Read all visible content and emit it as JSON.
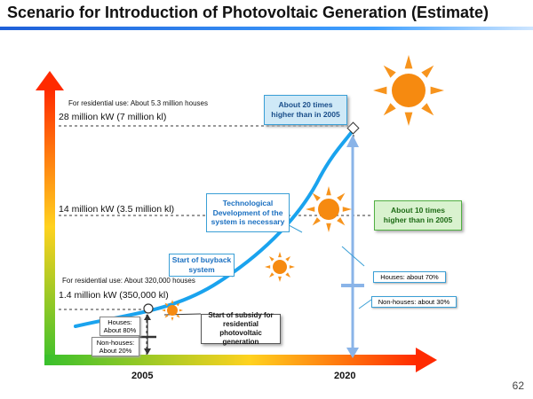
{
  "title": "Scenario for Introduction of Photovoltaic Generation (Estimate)",
  "page_number": "62",
  "x_axis": {
    "ticks": [
      "2005",
      "2020"
    ]
  },
  "levels": [
    {
      "note": "For residential use: About 5.3 million houses",
      "value": "28 million kW (7 million kl)"
    },
    {
      "note": "",
      "value": "14 million kW (3.5 million kl)"
    },
    {
      "note": "For residential use: About  320,000 houses",
      "value": "1.4 million  kW (350,000 kl)"
    }
  ],
  "callouts": {
    "times20": {
      "line1": "About 20 times",
      "line2": "higher than in 2005",
      "fill": "#cfe9f7",
      "border": "#3a9fd6",
      "color": "#1a4e8a"
    },
    "times10": {
      "line1": "About 10 times",
      "line2": "higher than in 2005",
      "fill": "#d9f2cf",
      "border": "#52b043",
      "color": "#1e6b16"
    },
    "tech": {
      "line1": "Technological",
      "line2": "Development  of the",
      "line3": "system is necessary",
      "color": "#1a6fc0"
    },
    "buyback": {
      "line1": "Start of buyback",
      "line2": "system",
      "color": "#1a6fc0"
    },
    "subsidy": {
      "line1": "Start of subsidy for",
      "line2": "residential  photovoltaic",
      "line3": "generation"
    }
  },
  "breakdown_2005": {
    "houses": {
      "line1": "Houses:",
      "line2": "About 80%"
    },
    "non_houses": {
      "line1": "Non-houses:",
      "line2": "About 20%"
    }
  },
  "breakdown_2020": {
    "houses": "Houses: about 70%",
    "non_houses": "Non-houses: about 30%"
  },
  "colors": {
    "curve": "#1aa3ee",
    "axis_top": "#ff2a00",
    "axis_mid": "#ffd21f",
    "axis_bottom": "#38c02c",
    "sun": "#f7941d",
    "sun_center": "#f68a10",
    "breakdown_arrow": "#8ab4e8"
  }
}
